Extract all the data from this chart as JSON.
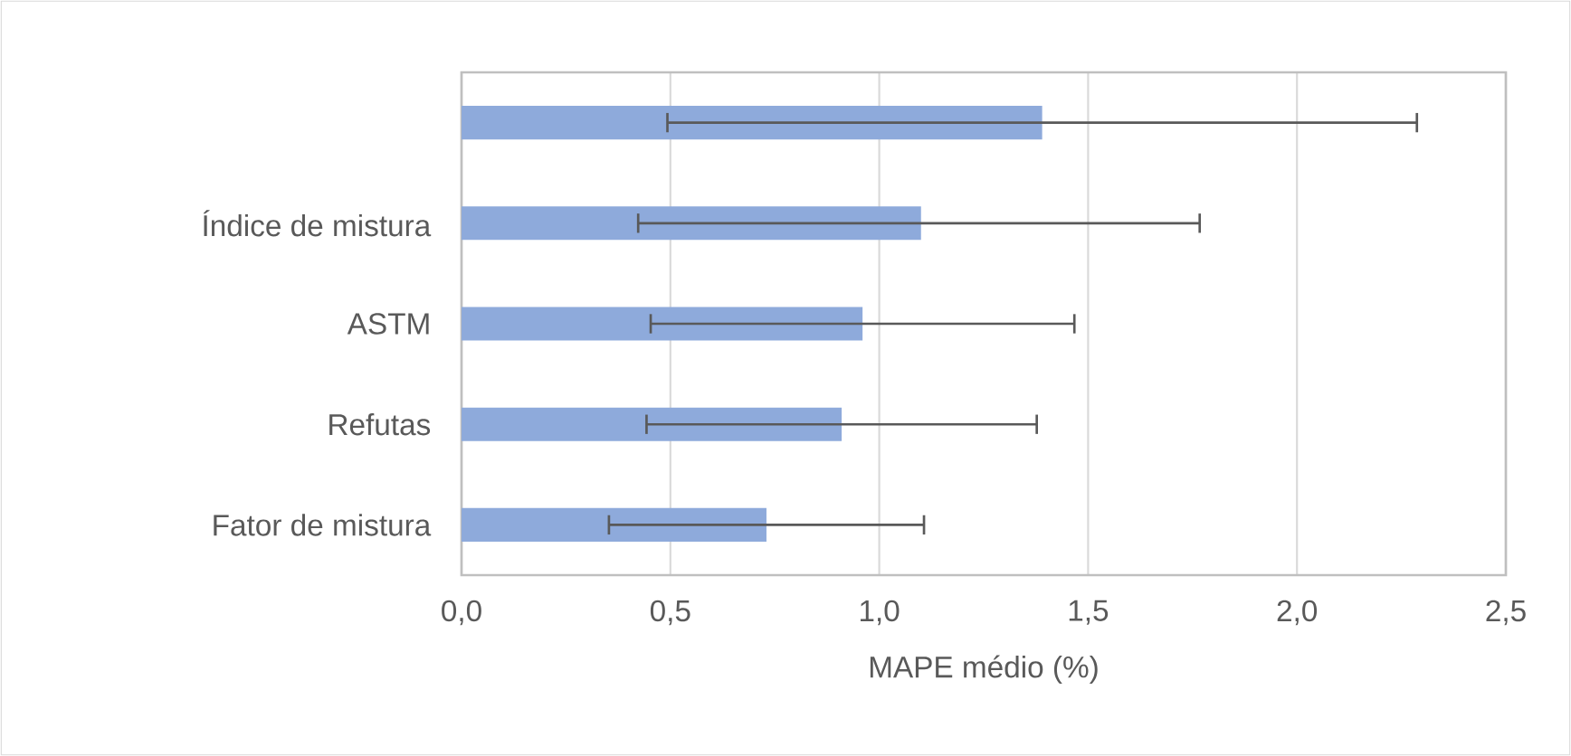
{
  "chart_data": {
    "type": "bar",
    "orientation": "horizontal",
    "xlabel": "MAPE médio (%)",
    "categories": [
      null,
      "Índice de mistura",
      "ASTM",
      "Refutas",
      "Fator de mistura"
    ],
    "values": [
      1.39,
      1.1,
      0.96,
      0.91,
      0.73
    ],
    "errors": [
      [
        0.49,
        2.29
      ],
      [
        0.42,
        1.77
      ],
      [
        0.45,
        1.47
      ],
      [
        0.44,
        1.38
      ],
      [
        0.35,
        1.11
      ]
    ],
    "color": "#8eaadb",
    "xlim": [
      0,
      2.5
    ],
    "xticks": [
      {
        "value": 0,
        "label": "0,0"
      },
      {
        "value": 0.5,
        "label": "0,5"
      },
      {
        "value": 1,
        "label": "1,0"
      },
      {
        "value": 1.5,
        "label": "1,5"
      },
      {
        "value": 2,
        "label": "2,0"
      },
      {
        "value": 2.5,
        "label": "2,5"
      }
    ],
    "grid": "x"
  }
}
